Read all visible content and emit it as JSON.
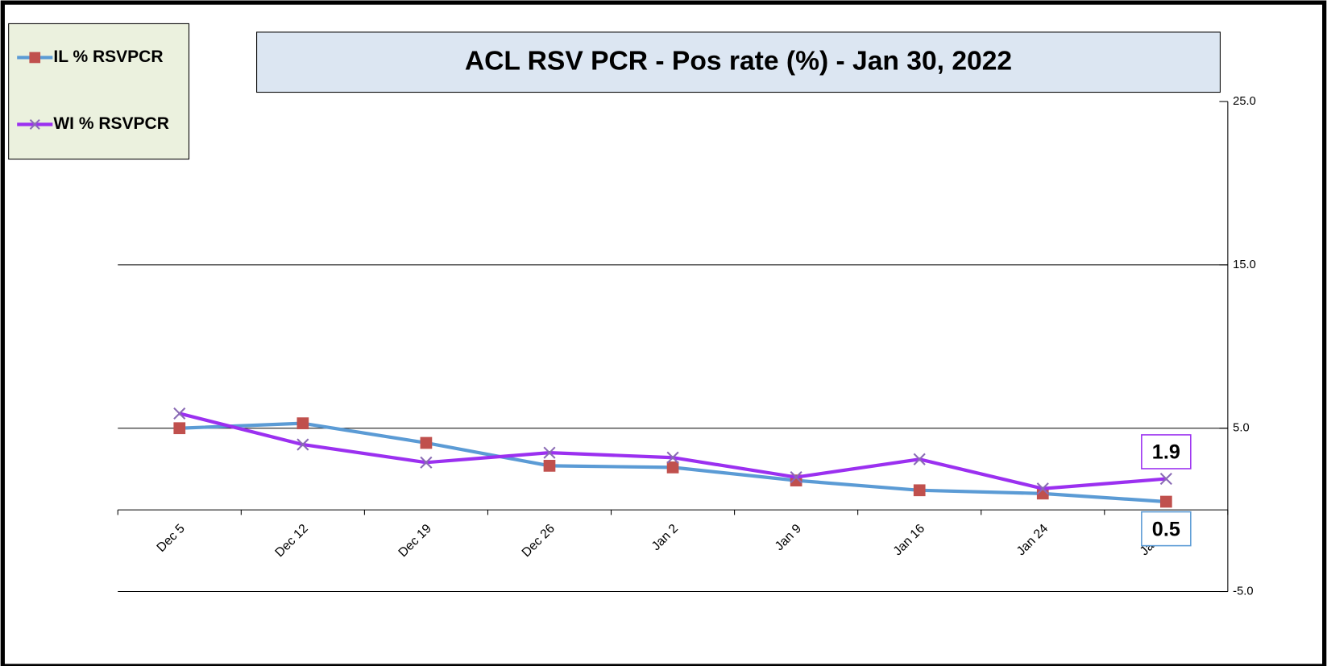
{
  "chart_data": {
    "type": "line",
    "title": "ACL RSV PCR - Pos rate (%) -  Jan 30, 2022",
    "categories": [
      "Dec 5",
      "Dec 12",
      "Dec 19",
      "Dec 26",
      "Jan 2",
      "Jan 9",
      "Jan 16",
      "Jan 24",
      "Jan 30"
    ],
    "series": [
      {
        "name": "IL % RSVPCR",
        "color": "#5b9bd5",
        "marker": "square",
        "marker_color": "#c0504d",
        "values": [
          5.0,
          5.3,
          4.1,
          2.7,
          2.6,
          1.8,
          1.2,
          1.0,
          0.5
        ]
      },
      {
        "name": "WI % RSVPCR",
        "color": "#9b30f0",
        "marker": "x",
        "marker_color": "#8a6bb5",
        "values": [
          5.9,
          4.0,
          2.9,
          3.5,
          3.2,
          2.0,
          3.1,
          1.3,
          1.9
        ]
      }
    ],
    "data_labels": "last",
    "ylim": [
      -5,
      25
    ],
    "yticks": [
      {
        "value": -5,
        "label": "-5.0"
      },
      {
        "value": 5,
        "label": "5.0"
      },
      {
        "value": 15,
        "label": "15.0"
      },
      {
        "value": 25,
        "label": "25.0"
      }
    ],
    "grid": true,
    "y_axis_side": "right",
    "legend": "upper left"
  }
}
